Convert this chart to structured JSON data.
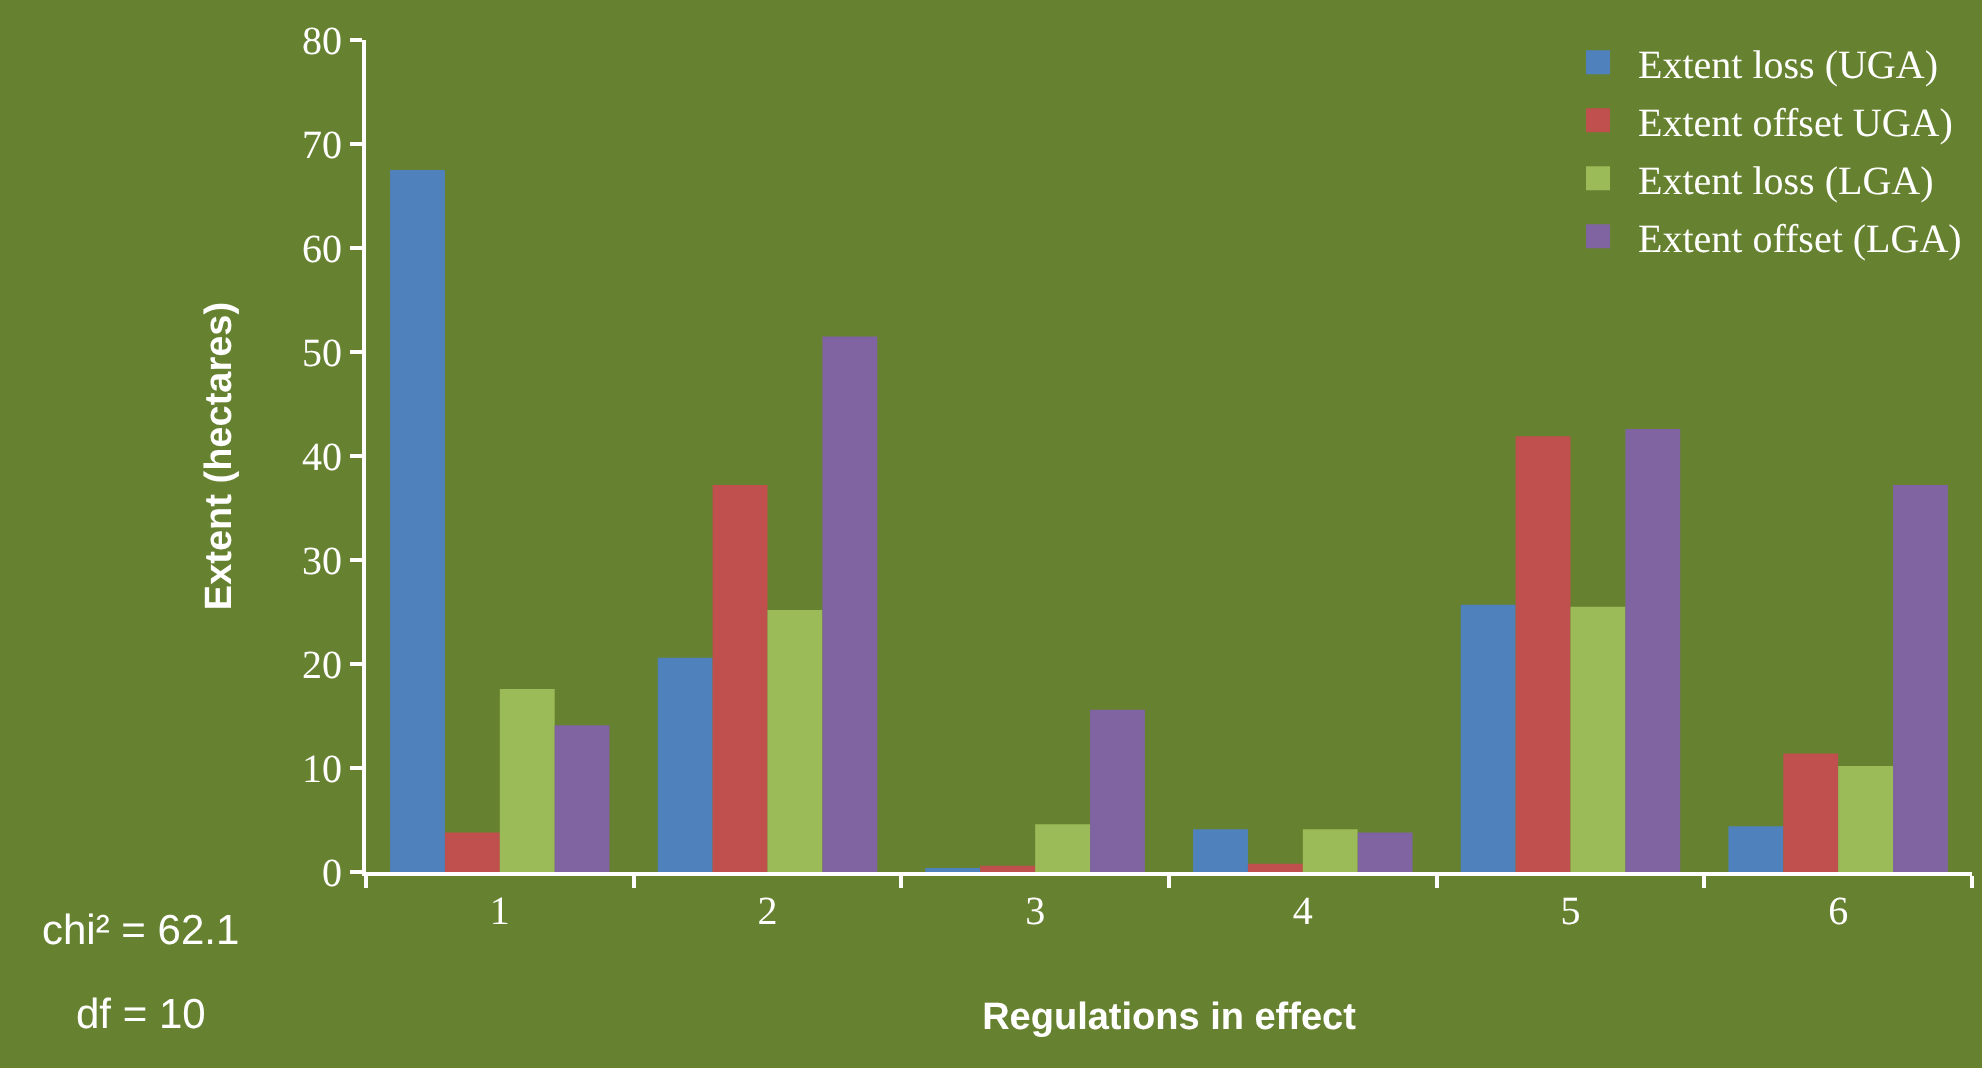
{
  "chart_data": {
    "type": "bar",
    "xlabel": "Regulations in effect",
    "ylabel": "Extent (hectares)",
    "categories": [
      "1",
      "2",
      "3",
      "4",
      "5",
      "6"
    ],
    "series": [
      {
        "name": "Extent loss (UGA)",
        "color": "#4f81bd",
        "values": [
          67.5,
          20.6,
          0.2,
          4.1,
          25.7,
          4.4
        ]
      },
      {
        "name": "Extent offset UGA)",
        "color": "#c0504d",
        "values": [
          3.8,
          37.2,
          0.6,
          0.8,
          41.9,
          11.4
        ]
      },
      {
        "name": "Extent loss (LGA)",
        "color": "#9bbb59",
        "values": [
          17.6,
          25.2,
          4.6,
          4.1,
          25.5,
          10.2
        ]
      },
      {
        "name": "Extent offset (LGA)",
        "color": "#8064a2",
        "values": [
          14.1,
          51.5,
          15.6,
          3.8,
          42.6,
          37.2
        ]
      }
    ],
    "ylim": [
      0,
      80
    ],
    "yticks": [
      0,
      10,
      20,
      30,
      40,
      50,
      60,
      70,
      80
    ],
    "grid": false,
    "legend": "top right",
    "annotations": [
      "chi² = 62.1",
      "df = 10"
    ]
  }
}
